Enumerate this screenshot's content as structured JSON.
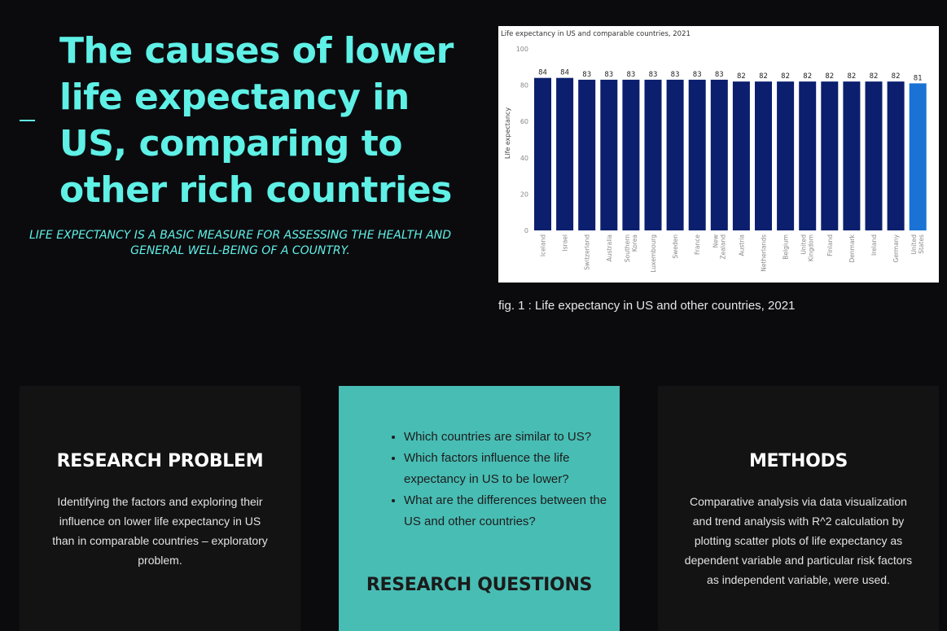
{
  "hero": {
    "title": "The causes of lower life expectancy in US, comparing to other rich countries",
    "subtitle": "LIFE EXPECTANCY IS A BASIC MEASURE FOR ASSESSING THE HEALTH AND GENERAL WELL-BEING OF A COUNTRY."
  },
  "figure": {
    "caption": "fig. 1 : Life expectancy in US and other countries, 2021"
  },
  "chart_data": {
    "type": "bar",
    "title": "Life expectancy in US and comparable countries, 2021",
    "ylabel": "Life expectancy",
    "xlabel": "",
    "ylim": [
      0,
      100
    ],
    "yticks": [
      0,
      20,
      40,
      60,
      80,
      100
    ],
    "grid": false,
    "categories": [
      "Iceland",
      "Israel",
      "Switzerland",
      "Australia",
      "Southern Korea",
      "Luxembourg",
      "Sweden",
      "France",
      "New Zealand",
      "Austria",
      "Netherlands",
      "Belgium",
      "United Kingdom",
      "Finland",
      "Denmark",
      "Ireland",
      "Germany",
      "United States"
    ],
    "values": [
      84,
      84,
      83,
      83,
      83,
      83,
      83,
      83,
      83,
      82,
      82,
      82,
      82,
      82,
      82,
      82,
      82,
      81
    ],
    "value_labels": [
      "84",
      "84",
      "83",
      "83",
      "83",
      "83",
      "83",
      "83",
      "83",
      "82",
      "82",
      "82",
      "82",
      "82",
      "82",
      "82",
      "82",
      "81"
    ],
    "colors": {
      "default": "#0b1f6e",
      "highlight": "#1a72d4"
    },
    "highlight_category": "United States"
  },
  "cards": {
    "problem": {
      "title": "RESEARCH PROBLEM",
      "body": "Identifying the factors and exploring their influence on lower life expectancy in US than in comparable countries – exploratory problem."
    },
    "questions": {
      "items": [
        "Which countries are similar to US?",
        "Which factors influence the life expectancy in US to be lower?",
        "What are the differences between the US and other countries?"
      ],
      "title": "RESEARCH QUESTIONS"
    },
    "methods": {
      "title": "METHODS",
      "body": "Comparative analysis via data visualization and trend analysis with R^2 calculation by plotting scatter plots of life expectancy as dependent variable and particular risk factors as independent variable, were used."
    }
  },
  "theme": {
    "accent": "#5ff0e6",
    "background": "#0b0b0e",
    "card_dark": "#131313",
    "card_teal": "#48bdb4"
  }
}
